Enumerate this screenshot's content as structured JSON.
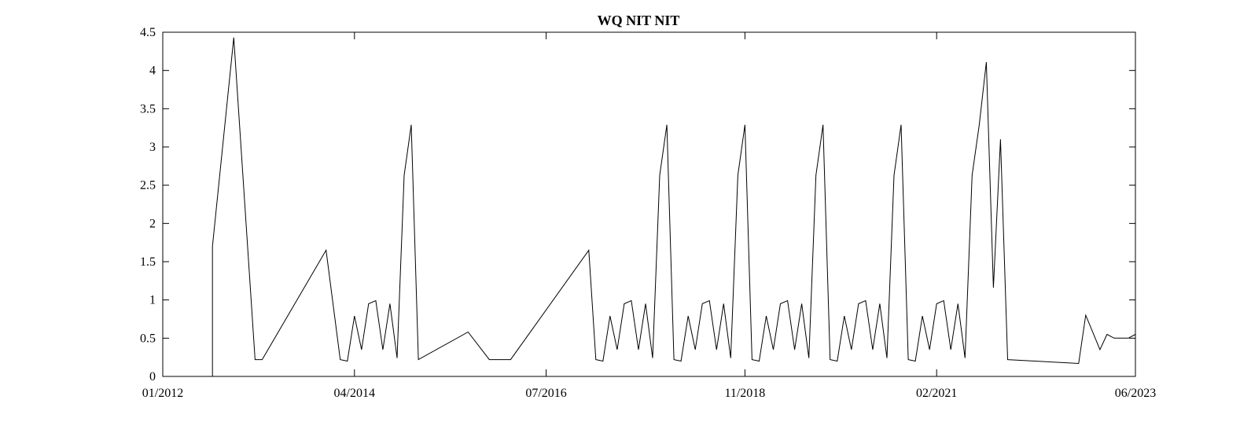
{
  "chart_data": {
    "type": "line",
    "title": "WQ NIT NIT",
    "xlabel": "",
    "ylabel": "",
    "x_ticks": [
      "01/2012",
      "04/2014",
      "07/2016",
      "11/2018",
      "02/2021",
      "06/2023"
    ],
    "y_ticks": [
      "0",
      "0.5",
      "1",
      "1.5",
      "2",
      "2.5",
      "3",
      "3.5",
      "4",
      "4.5"
    ],
    "xlim": [
      "2012-01",
      "2023-06"
    ],
    "ylim": [
      0,
      4.5
    ],
    "grid": false,
    "line_color": "#000000",
    "series": [
      {
        "x": [
          "2012-01",
          "2012-08",
          "2012-08",
          "2012-11",
          "2013-02",
          "2013-03",
          "2013-12",
          "2014-02",
          "2014-03",
          "2014-04",
          "2014-05",
          "2014-06",
          "2014-07",
          "2014-08",
          "2014-09",
          "2014-10",
          "2014-11",
          "2014-12",
          "2015-01",
          "2015-08",
          "2015-11",
          "2016-02",
          "2017-01",
          "2017-02",
          "2017-03",
          "2017-04",
          "2017-05",
          "2017-06",
          "2017-07",
          "2017-08",
          "2017-09",
          "2017-10",
          "2017-11",
          "2017-12",
          "2018-01",
          "2018-02",
          "2018-03",
          "2018-04",
          "2018-05",
          "2018-06",
          "2018-07",
          "2018-08",
          "2018-09",
          "2018-10",
          "2018-11",
          "2018-12",
          "2019-01",
          "2019-02",
          "2019-03",
          "2019-04",
          "2019-05",
          "2019-06",
          "2019-07",
          "2019-08",
          "2019-09",
          "2019-10",
          "2019-11",
          "2019-12",
          "2020-01",
          "2020-02",
          "2020-03",
          "2020-04",
          "2020-05",
          "2020-06",
          "2020-07",
          "2020-08",
          "2020-09",
          "2020-10",
          "2020-11",
          "2020-12",
          "2021-01",
          "2021-02",
          "2021-03",
          "2021-04",
          "2021-05",
          "2021-06",
          "2021-07",
          "2021-08",
          "2021-09",
          "2021-10",
          "2021-11",
          "2021-12",
          "2022-10",
          "2022-11",
          "2023-01",
          "2023-02",
          "2023-03",
          "2023-04",
          "2023-05",
          "2023-06"
        ],
        "y": [
          0,
          0,
          1.7,
          4.43,
          0.22,
          0.22,
          1.65,
          0.22,
          0.2,
          0.79,
          0.35,
          0.95,
          0.99,
          0.35,
          0.95,
          0.24,
          2.63,
          3.29,
          0.22,
          0.58,
          0.22,
          0.22,
          1.65,
          0.22,
          0.2,
          0.79,
          0.35,
          0.95,
          0.99,
          0.35,
          0.95,
          0.24,
          2.63,
          3.29,
          0.22,
          0.2,
          0.79,
          0.35,
          0.95,
          0.99,
          0.35,
          0.95,
          0.24,
          2.63,
          3.29,
          0.22,
          0.2,
          0.79,
          0.35,
          0.95,
          0.99,
          0.35,
          0.95,
          0.24,
          2.63,
          3.29,
          0.22,
          0.2,
          0.79,
          0.35,
          0.95,
          0.99,
          0.35,
          0.95,
          0.24,
          2.63,
          3.29,
          0.22,
          0.2,
          0.79,
          0.35,
          0.95,
          0.99,
          0.35,
          0.95,
          0.24,
          2.63,
          3.29,
          4.11,
          1.16,
          3.1,
          0.22,
          0.17,
          0.8,
          0.35,
          0.55,
          0.5,
          0.5,
          0.5,
          0.55
        ]
      }
    ]
  }
}
